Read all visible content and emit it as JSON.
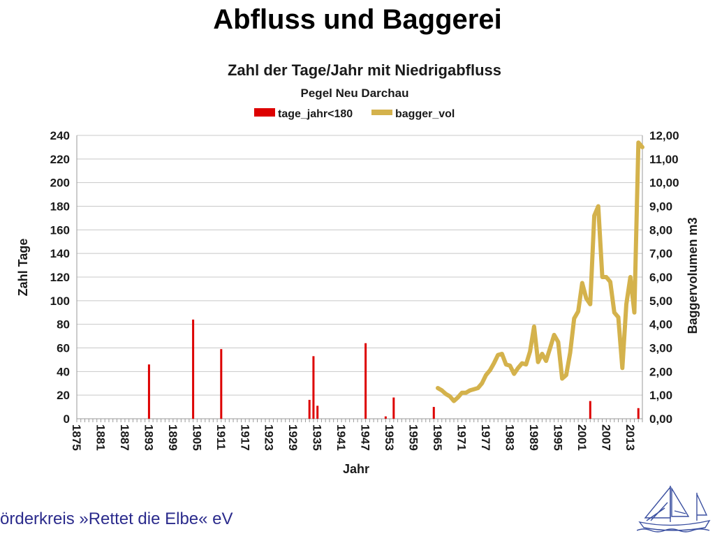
{
  "slide": {
    "title": "Abfluss und Baggerei",
    "footer": "örderkreis »Rettet die Elbe« eV"
  },
  "chart_data": {
    "type": "bar+line",
    "title": "Zahl der Tage/Jahr mit Niedrigabfluss",
    "subtitle": "Pegel Neu Darchau",
    "xlabel": "Jahr",
    "ylabel_left": "Zahl Tage",
    "ylabel_right": "Baggervolumen m3",
    "legend": {
      "position": "top",
      "bar_label": "tage_jahr<180",
      "line_label": "bagger_vol"
    },
    "x_range": [
      1875,
      2016
    ],
    "x_tick_labels": [
      "1875",
      "1881",
      "1887",
      "1893",
      "1899",
      "1905",
      "1911",
      "1917",
      "1923",
      "1929",
      "1935",
      "1941",
      "1947",
      "1953",
      "1959",
      "1965",
      "1971",
      "1977",
      "1983",
      "1989",
      "1995",
      "2001",
      "2007",
      "2013"
    ],
    "ylim_left": [
      0,
      240
    ],
    "y_ticks_left": [
      "0",
      "20",
      "40",
      "60",
      "80",
      "100",
      "120",
      "140",
      "160",
      "180",
      "200",
      "220",
      "240"
    ],
    "ylim_right": [
      0,
      12
    ],
    "y_ticks_right": [
      "0,00",
      "1,00",
      "2,00",
      "3,00",
      "4,00",
      "5,00",
      "6,00",
      "7,00",
      "8,00",
      "9,00",
      "10,00",
      "11,00",
      "12,00"
    ],
    "grid": true,
    "colors": {
      "bar": "#dd0000",
      "line": "#d4b24c",
      "grid": "#c8c8c8"
    },
    "series_bar": {
      "name": "tage_jahr<180",
      "years": [
        1893,
        1904,
        1911,
        1933,
        1934,
        1935,
        1947,
        1952,
        1954,
        1964,
        2003,
        2015
      ],
      "values": [
        46,
        84,
        59,
        16,
        53,
        11,
        64,
        2,
        18,
        10,
        15,
        9
      ]
    },
    "series_line": {
      "name": "bagger_vol",
      "years": [
        1965,
        1966,
        1967,
        1968,
        1969,
        1970,
        1971,
        1972,
        1973,
        1974,
        1975,
        1976,
        1977,
        1978,
        1979,
        1980,
        1981,
        1982,
        1983,
        1984,
        1985,
        1986,
        1987,
        1988,
        1989,
        1990,
        1991,
        1992,
        1993,
        1994,
        1995,
        1996,
        1997,
        1998,
        1999,
        2000,
        2001,
        2002,
        2003,
        2004,
        2005,
        2006,
        2007,
        2008,
        2009,
        2010,
        2011,
        2012,
        2013,
        2014,
        2015,
        2016
      ],
      "values": [
        1.3,
        1.2,
        1.05,
        0.95,
        0.75,
        0.9,
        1.1,
        1.1,
        1.2,
        1.25,
        1.3,
        1.5,
        1.85,
        2.05,
        2.35,
        2.7,
        2.75,
        2.3,
        2.25,
        1.9,
        2.15,
        2.35,
        2.3,
        2.85,
        3.9,
        2.4,
        2.75,
        2.45,
        3.0,
        3.55,
        3.25,
        1.7,
        1.85,
        2.8,
        4.25,
        4.55,
        5.75,
        5.1,
        4.85,
        8.6,
        9.0,
        6.0,
        6.0,
        5.8,
        4.5,
        4.3,
        2.15,
        4.85,
        6.0,
        4.5,
        11.7,
        11.5
      ]
    }
  }
}
